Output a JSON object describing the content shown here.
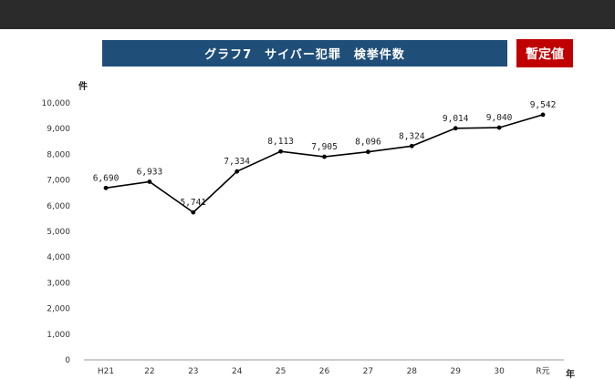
{
  "header": {
    "title": "グラフ7　サイバー犯罪　検挙件数",
    "badge": "暫定値"
  },
  "chart_data": {
    "type": "line",
    "title": "グラフ7　サイバー犯罪　検挙件数",
    "xlabel": "年",
    "ylabel": "件",
    "categories": [
      "H21",
      "22",
      "23",
      "24",
      "25",
      "26",
      "27",
      "28",
      "29",
      "30",
      "R元"
    ],
    "series": [
      {
        "values": [
          6690,
          6933,
          5741,
          7334,
          8113,
          7905,
          8096,
          8324,
          9014,
          9040,
          9542
        ],
        "labels": [
          "6,690",
          "6,933",
          "5,741",
          "7,334",
          "8,113",
          "7,905",
          "8,096",
          "8,324",
          "9,014",
          "9,040",
          "9,542"
        ]
      }
    ],
    "ylim": [
      0,
      10000
    ],
    "yticks": [
      0,
      1000,
      2000,
      3000,
      4000,
      5000,
      6000,
      7000,
      8000,
      9000,
      10000
    ],
    "ytick_labels": [
      "0",
      "1,000",
      "2,000",
      "3,000",
      "4,000",
      "5,000",
      "6,000",
      "7,000",
      "8,000",
      "9,000",
      "10,000"
    ],
    "grid": false,
    "legend": "none",
    "line_color": "#000000"
  }
}
